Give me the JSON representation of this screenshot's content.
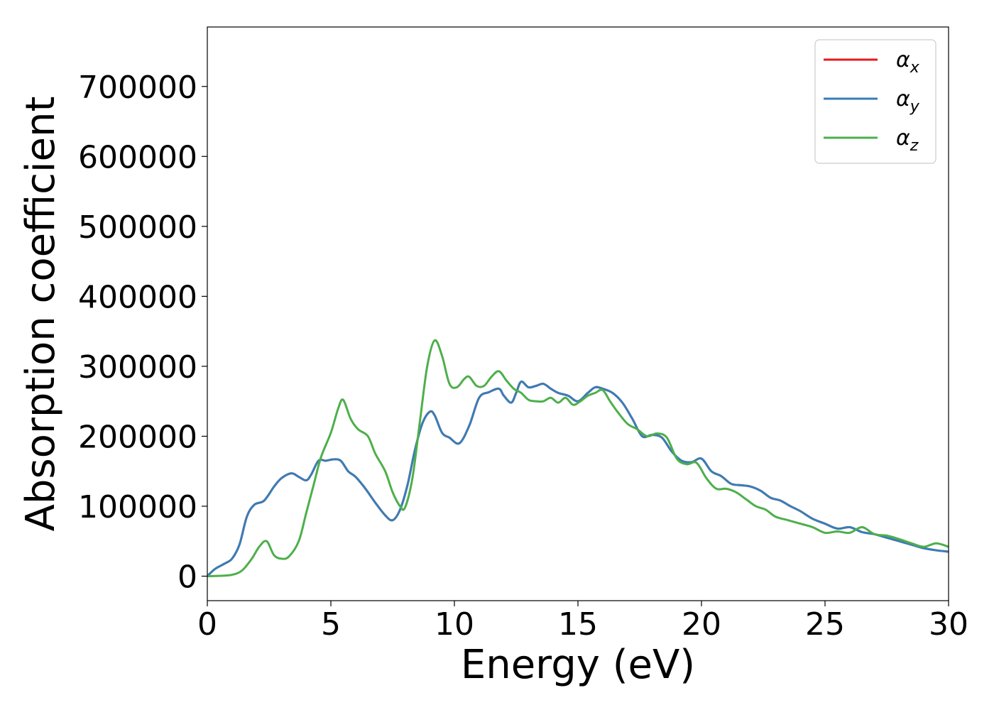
{
  "chart_data": {
    "type": "line",
    "title": "",
    "xlabel": "Energy (eV)",
    "ylabel": "Absorption coefficient",
    "xlim": [
      0,
      30
    ],
    "ylim": [
      -35000,
      785000
    ],
    "xticks": [
      0,
      5,
      10,
      15,
      20,
      25,
      30
    ],
    "yticks": [
      0,
      100000,
      200000,
      300000,
      400000,
      500000,
      600000,
      700000
    ],
    "grid": false,
    "legend_position": "top-right",
    "series": [
      {
        "name": "αx",
        "legend_base": "α",
        "legend_sub": "x",
        "color": "#e41a1c",
        "x": [
          0,
          0.3,
          0.7,
          1.0,
          1.3,
          1.6,
          1.9,
          2.3,
          2.7,
          3.0,
          3.4,
          3.7,
          4.0,
          4.2,
          4.5,
          4.8,
          5.1,
          5.4,
          5.7,
          6.0,
          6.4,
          6.8,
          7.2,
          7.5,
          7.8,
          8.1,
          8.4,
          8.7,
          9.0,
          9.2,
          9.5,
          9.8,
          10.2,
          10.6,
          11.0,
          11.4,
          11.8,
          12.0,
          12.3,
          12.5,
          12.7,
          13.0,
          13.3,
          13.6,
          13.9,
          14.2,
          14.6,
          15.0,
          15.4,
          15.7,
          16.0,
          16.4,
          16.8,
          17.2,
          17.6,
          18.0,
          18.4,
          18.8,
          19.2,
          19.6,
          20.0,
          20.4,
          20.8,
          21.2,
          21.6,
          22.0,
          22.4,
          22.8,
          23.2,
          23.6,
          24.0,
          24.5,
          25.0,
          25.5,
          26.0,
          26.5,
          27.0,
          27.5,
          28.0,
          28.5,
          29.0,
          29.5,
          30.0
        ],
        "y": [
          0,
          10000,
          18000,
          25000,
          45000,
          85000,
          102000,
          108000,
          128000,
          140000,
          147000,
          142000,
          137000,
          145000,
          165000,
          165000,
          167000,
          165000,
          150000,
          142000,
          125000,
          105000,
          87000,
          80000,
          95000,
          130000,
          180000,
          218000,
          235000,
          230000,
          205000,
          198000,
          190000,
          215000,
          255000,
          263000,
          268000,
          258000,
          248000,
          262000,
          278000,
          270000,
          272000,
          275000,
          268000,
          262000,
          258000,
          250000,
          262000,
          270000,
          268000,
          262000,
          248000,
          225000,
          200000,
          202000,
          198000,
          178000,
          165000,
          163000,
          168000,
          150000,
          143000,
          132000,
          130000,
          128000,
          122000,
          112000,
          108000,
          100000,
          93000,
          82000,
          75000,
          68000,
          70000,
          63000,
          60000,
          55000,
          50000,
          45000,
          40000,
          37000,
          35000
        ]
      },
      {
        "name": "αy",
        "legend_base": "α",
        "legend_sub": "y",
        "color": "#377eb8",
        "x": [
          0,
          0.3,
          0.7,
          1.0,
          1.3,
          1.6,
          1.9,
          2.3,
          2.7,
          3.0,
          3.4,
          3.7,
          4.0,
          4.2,
          4.5,
          4.8,
          5.1,
          5.4,
          5.7,
          6.0,
          6.4,
          6.8,
          7.2,
          7.5,
          7.8,
          8.1,
          8.4,
          8.7,
          9.0,
          9.2,
          9.5,
          9.8,
          10.2,
          10.6,
          11.0,
          11.4,
          11.8,
          12.0,
          12.3,
          12.5,
          12.7,
          13.0,
          13.3,
          13.6,
          13.9,
          14.2,
          14.6,
          15.0,
          15.4,
          15.7,
          16.0,
          16.4,
          16.8,
          17.2,
          17.6,
          18.0,
          18.4,
          18.8,
          19.2,
          19.6,
          20.0,
          20.4,
          20.8,
          21.2,
          21.6,
          22.0,
          22.4,
          22.8,
          23.2,
          23.6,
          24.0,
          24.5,
          25.0,
          25.5,
          26.0,
          26.5,
          27.0,
          27.5,
          28.0,
          28.5,
          29.0,
          29.5,
          30.0
        ],
        "y": [
          0,
          10000,
          18000,
          25000,
          45000,
          85000,
          102000,
          108000,
          128000,
          140000,
          147000,
          142000,
          137000,
          145000,
          165000,
          165000,
          167000,
          165000,
          150000,
          142000,
          125000,
          105000,
          87000,
          80000,
          95000,
          130000,
          180000,
          218000,
          235000,
          230000,
          205000,
          198000,
          190000,
          215000,
          255000,
          263000,
          268000,
          258000,
          248000,
          262000,
          278000,
          270000,
          272000,
          275000,
          268000,
          262000,
          258000,
          250000,
          262000,
          270000,
          268000,
          262000,
          248000,
          225000,
          200000,
          202000,
          198000,
          178000,
          165000,
          163000,
          168000,
          150000,
          143000,
          132000,
          130000,
          128000,
          122000,
          112000,
          108000,
          100000,
          93000,
          82000,
          75000,
          68000,
          70000,
          63000,
          60000,
          55000,
          50000,
          45000,
          40000,
          37000,
          35000
        ]
      },
      {
        "name": "αz",
        "legend_base": "α",
        "legend_sub": "z",
        "color": "#4daf4a",
        "x": [
          0,
          0.5,
          1.0,
          1.4,
          1.8,
          2.1,
          2.4,
          2.7,
          3.0,
          3.3,
          3.7,
          4.0,
          4.3,
          4.6,
          5.0,
          5.3,
          5.5,
          5.8,
          6.1,
          6.5,
          6.8,
          7.2,
          7.5,
          7.8,
          8.0,
          8.3,
          8.6,
          8.9,
          9.2,
          9.5,
          9.8,
          10.1,
          10.4,
          10.6,
          10.9,
          11.2,
          11.5,
          11.8,
          12.1,
          12.4,
          12.7,
          13.0,
          13.3,
          13.6,
          13.9,
          14.2,
          14.5,
          14.8,
          15.1,
          15.4,
          15.7,
          16.0,
          16.3,
          16.6,
          17.0,
          17.4,
          17.8,
          18.2,
          18.6,
          19.0,
          19.4,
          19.8,
          20.2,
          20.6,
          21.0,
          21.4,
          21.8,
          22.2,
          22.6,
          23.0,
          23.5,
          24.0,
          24.5,
          25.0,
          25.5,
          26.0,
          26.5,
          27.0,
          27.5,
          28.0,
          28.5,
          29.0,
          29.5,
          30.0
        ],
        "y": [
          0,
          500,
          2000,
          8000,
          25000,
          42000,
          50000,
          30000,
          25000,
          28000,
          50000,
          90000,
          130000,
          170000,
          205000,
          240000,
          252000,
          225000,
          210000,
          200000,
          175000,
          150000,
          120000,
          100000,
          98000,
          140000,
          220000,
          300000,
          337000,
          315000,
          275000,
          270000,
          282000,
          285000,
          272000,
          272000,
          285000,
          293000,
          280000,
          268000,
          262000,
          252000,
          250000,
          250000,
          255000,
          248000,
          255000,
          245000,
          250000,
          258000,
          262000,
          266000,
          250000,
          235000,
          218000,
          210000,
          200000,
          204000,
          198000,
          168000,
          160000,
          162000,
          140000,
          125000,
          125000,
          120000,
          110000,
          100000,
          95000,
          85000,
          80000,
          75000,
          70000,
          62000,
          64000,
          62000,
          70000,
          60000,
          58000,
          53000,
          47000,
          42000,
          47000,
          42000
        ]
      }
    ]
  }
}
